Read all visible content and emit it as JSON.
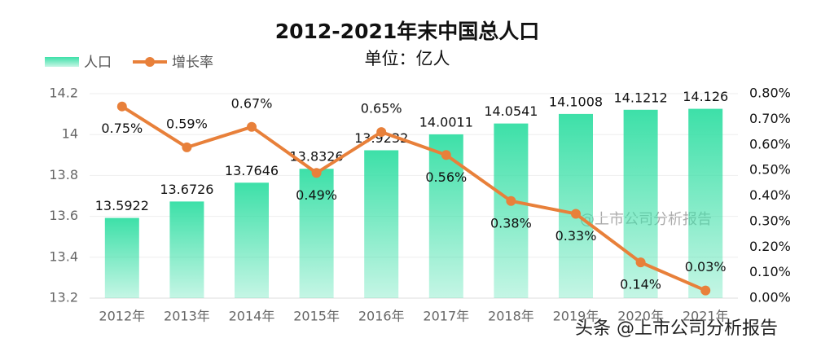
{
  "chart_data": {
    "type": "bar",
    "title": "2012-2021年末中国总人口",
    "subtitle": "单位：亿人",
    "categories": [
      "2012年",
      "2013年",
      "2014年",
      "2015年",
      "2016年",
      "2017年",
      "2018年",
      "2019年",
      "2020年",
      "2021年"
    ],
    "series": [
      {
        "name": "人口",
        "type": "bar",
        "color": "#3de0a8",
        "values": [
          13.5922,
          13.6726,
          13.7646,
          13.8326,
          13.9232,
          14.0011,
          14.0541,
          14.1008,
          14.1212,
          14.126
        ]
      },
      {
        "name": "增长率",
        "type": "line",
        "axis": "y2",
        "color": "#e8803a",
        "values": [
          0.75,
          0.59,
          0.67,
          0.49,
          0.65,
          0.56,
          0.38,
          0.33,
          0.14,
          0.03
        ],
        "value_labels": [
          "0.75%",
          "0.59%",
          "0.67%",
          "0.49%",
          "0.65%",
          "0.56%",
          "0.38%",
          "0.33%",
          "0.14%",
          "0.03%"
        ]
      }
    ],
    "ylim": [
      13.2,
      14.2
    ],
    "yticks": [
      13.2,
      13.4,
      13.6,
      13.8,
      14,
      14.2
    ],
    "y2lim": [
      0,
      0.8
    ],
    "y2ticks": [
      {
        "value": 0,
        "label": "0.00%"
      },
      {
        "value": 0.1,
        "label": "0.10%"
      },
      {
        "value": 0.2,
        "label": "0.20%"
      },
      {
        "value": 0.3,
        "label": "0.30%"
      },
      {
        "value": 0.4,
        "label": "0.40%"
      },
      {
        "value": 0.5,
        "label": "0.50%"
      },
      {
        "value": 0.6,
        "label": "0.60%"
      },
      {
        "value": 0.7,
        "label": "0.70%"
      },
      {
        "value": 0.8,
        "label": "0.80%"
      }
    ],
    "grid": true,
    "legend": "top-left",
    "annotations": [
      "@上市公司分析报告",
      "头条 @上市公司分析报告"
    ]
  }
}
